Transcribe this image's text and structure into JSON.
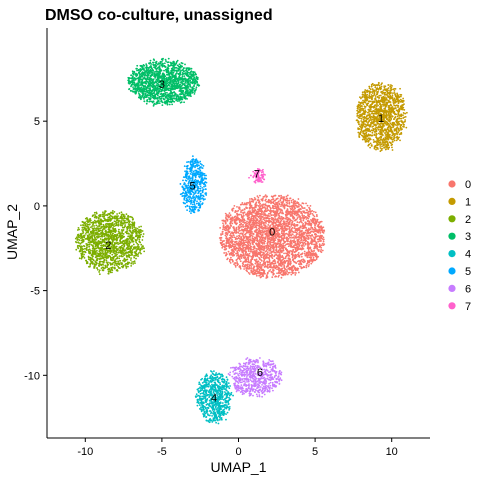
{
  "chart_data": {
    "type": "scatter",
    "title": "DMSO co-culture, unassigned",
    "xlabel": "UMAP_1",
    "ylabel": "UMAP_2",
    "xlim": [
      -12.5,
      12.5
    ],
    "ylim": [
      -13.7,
      10.5
    ],
    "x_ticks": [
      -10,
      -5,
      0,
      5,
      10
    ],
    "y_ticks": [
      -10,
      -5,
      0,
      5
    ],
    "x_tick_labels": [
      "-10",
      "-5",
      "0",
      "5",
      "10"
    ],
    "y_tick_labels": [
      "-10",
      "-5",
      "0",
      "5"
    ],
    "grid": false,
    "legend_position": "right",
    "series": [
      {
        "name": "0",
        "color": "#F8766D",
        "centroid": [
          2.2,
          -1.8
        ],
        "spread": [
          3.4,
          2.4
        ],
        "point_count": 3200
      },
      {
        "name": "1",
        "color": "#C49A00",
        "centroid": [
          9.3,
          5.3
        ],
        "spread": [
          1.6,
          2.0
        ],
        "point_count": 1300
      },
      {
        "name": "2",
        "color": "#7CAE00",
        "centroid": [
          -8.4,
          -2.1
        ],
        "spread": [
          2.2,
          1.8
        ],
        "point_count": 1500
      },
      {
        "name": "3",
        "color": "#00BE67",
        "centroid": [
          -4.9,
          7.3
        ],
        "spread": [
          2.3,
          1.3
        ],
        "point_count": 1500
      },
      {
        "name": "4",
        "color": "#00BFC4",
        "centroid": [
          -1.6,
          -11.3
        ],
        "spread": [
          1.1,
          1.5
        ],
        "point_count": 700
      },
      {
        "name": "5",
        "color": "#00A9FF",
        "centroid": [
          -2.9,
          1.2
        ],
        "spread": [
          0.8,
          1.6
        ],
        "point_count": 500
      },
      {
        "name": "6",
        "color": "#C77CFF",
        "centroid": [
          1.1,
          -10.1
        ],
        "spread": [
          1.7,
          1.1
        ],
        "point_count": 600
      },
      {
        "name": "7",
        "color": "#FF61CC",
        "centroid": [
          1.3,
          1.8
        ],
        "spread": [
          0.4,
          0.4
        ],
        "point_count": 80
      }
    ],
    "cluster_labels": [
      {
        "text": "0",
        "x": 2.2,
        "y": -1.5
      },
      {
        "text": "1",
        "x": 9.3,
        "y": 5.2
      },
      {
        "text": "2",
        "x": -8.5,
        "y": -2.3
      },
      {
        "text": "3",
        "x": -5.0,
        "y": 7.2
      },
      {
        "text": "4",
        "x": -1.6,
        "y": -11.3
      },
      {
        "text": "5",
        "x": -3.0,
        "y": 1.2
      },
      {
        "text": "6",
        "x": 1.4,
        "y": -9.8
      },
      {
        "text": "7",
        "x": 1.2,
        "y": 1.9
      }
    ]
  }
}
